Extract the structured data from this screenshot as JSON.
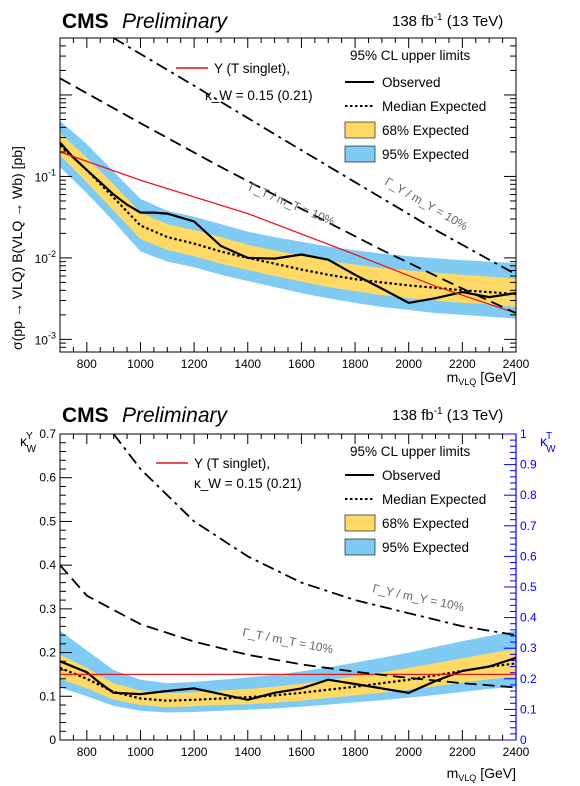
{
  "chart_data": [
    {
      "type": "line",
      "header": {
        "cms": "CMS",
        "preliminary": "Preliminary",
        "lumi_value": "138 fb",
        "lumi_exp": "-1",
        "lumi_energy": " (13 TeV)"
      },
      "xlabel": {
        "main": "m",
        "sub": "VLQ",
        "unit": " [GeV]"
      },
      "ylabel": "σ(pp → VLQ) B(VLQ → Wb) [pb]",
      "x_ticks": [
        "800",
        "1000",
        "1200",
        "1400",
        "1600",
        "1800",
        "2000",
        "2200",
        "2400"
      ],
      "y_ticks": [
        {
          "value": 0.1,
          "base": "10",
          "exp": "-1"
        },
        {
          "value": 0.01,
          "base": "10",
          "exp": "-2"
        },
        {
          "value": 0.001,
          "base": "10",
          "exp": "-3"
        }
      ],
      "xlim": [
        700,
        2400
      ],
      "ylim": [
        0.0007,
        5
      ],
      "yscale": "log",
      "legend": {
        "title": "95% CL upper limits",
        "observed": "Observed",
        "expected": "Median Expected",
        "band68": "68% Expected",
        "band95": "95% Expected",
        "theory": "Y (T singlet),",
        "theory2": "κ_W = 0.15 (0.21)",
        "placement": "top-right"
      },
      "width_labels": [
        "Γ_Y / m_Y = 10%",
        "Γ_T / m_T = 10%"
      ],
      "colors": {
        "band68": "#fed966",
        "band95": "#7fcbf4",
        "theory": "#e41a1c",
        "line": "#000000",
        "label": "#666666"
      },
      "series": [
        {
          "name": "Observed",
          "style": "solid",
          "x": [
            700,
            750,
            800,
            850,
            900,
            950,
            1000,
            1050,
            1100,
            1200,
            1300,
            1400,
            1500,
            1600,
            1700,
            1800,
            1900,
            2000,
            2100,
            2200,
            2300,
            2400
          ],
          "y": [
            0.26,
            0.17,
            0.12,
            0.085,
            0.06,
            0.045,
            0.036,
            0.036,
            0.035,
            0.028,
            0.014,
            0.01,
            0.0098,
            0.011,
            0.0095,
            0.0062,
            0.0042,
            0.0028,
            0.0032,
            0.0038,
            0.0033,
            0.0037
          ]
        },
        {
          "name": "Median Expected",
          "style": "dotted",
          "x": [
            700,
            800,
            900,
            1000,
            1100,
            1200,
            1300,
            1400,
            1500,
            1600,
            1700,
            1800,
            1900,
            2000,
            2100,
            2200,
            2300,
            2400
          ],
          "y": [
            0.24,
            0.12,
            0.055,
            0.025,
            0.018,
            0.015,
            0.012,
            0.01,
            0.0085,
            0.0072,
            0.0062,
            0.0055,
            0.005,
            0.0046,
            0.0043,
            0.004,
            0.0038,
            0.0036
          ]
        },
        {
          "name": "68% Expected",
          "style": "band",
          "x": [
            700,
            800,
            900,
            1000,
            1100,
            1200,
            1300,
            1400,
            1500,
            1600,
            1700,
            1800,
            1900,
            2000,
            2100,
            2200,
            2300,
            2400
          ],
          "lo": [
            0.18,
            0.085,
            0.038,
            0.017,
            0.0125,
            0.0105,
            0.0085,
            0.0071,
            0.006,
            0.0051,
            0.0044,
            0.0039,
            0.0035,
            0.0032,
            0.003,
            0.0028,
            0.0027,
            0.0025
          ],
          "hi": [
            0.34,
            0.17,
            0.08,
            0.036,
            0.026,
            0.022,
            0.018,
            0.0145,
            0.0124,
            0.0106,
            0.0092,
            0.0083,
            0.0075,
            0.007,
            0.0066,
            0.0062,
            0.0059,
            0.0056
          ]
        },
        {
          "name": "95% Expected",
          "style": "band",
          "x": [
            700,
            800,
            900,
            1000,
            1100,
            1200,
            1300,
            1400,
            1500,
            1600,
            1700,
            1800,
            1900,
            2000,
            2100,
            2200,
            2300,
            2400
          ],
          "lo": [
            0.13,
            0.062,
            0.028,
            0.012,
            0.009,
            0.0077,
            0.0062,
            0.0052,
            0.0044,
            0.0037,
            0.0032,
            0.0028,
            0.0025,
            0.0023,
            0.0021,
            0.002,
            0.0019,
            0.0018
          ],
          "hi": [
            0.48,
            0.25,
            0.115,
            0.053,
            0.038,
            0.032,
            0.026,
            0.021,
            0.018,
            0.0158,
            0.0138,
            0.0124,
            0.0113,
            0.0105,
            0.0099,
            0.0094,
            0.009,
            0.0086
          ]
        },
        {
          "name": "Y (T singlet), κ_W = 0.15 (0.21)",
          "style": "theory",
          "x": [
            700,
            1000,
            1400,
            1800,
            2100,
            2400
          ],
          "y": [
            0.2,
            0.09,
            0.035,
            0.011,
            0.0045,
            0.0021
          ]
        },
        {
          "name": "Γ_Y / m_Y = 10%",
          "style": "dashdot",
          "x": [
            900,
            1200,
            1500,
            1800,
            2100,
            2300,
            2400
          ],
          "y": [
            5.0,
            1.3,
            0.33,
            0.085,
            0.022,
            0.0095,
            0.0063
          ]
        },
        {
          "name": "Γ_T / m_T = 10%",
          "style": "dashed",
          "x": [
            700,
            1000,
            1300,
            1600,
            1900,
            2200,
            2400
          ],
          "y": [
            1.6,
            0.45,
            0.13,
            0.04,
            0.0125,
            0.0042,
            0.0021
          ]
        }
      ]
    },
    {
      "type": "line",
      "header": {
        "cms": "CMS",
        "preliminary": "Preliminary",
        "lumi_value": "138 fb",
        "lumi_exp": "-1",
        "lumi_energy": " (13 TeV)"
      },
      "xlabel": {
        "main": "m",
        "sub": "VLQ",
        "unit": " [GeV]"
      },
      "ylabel": {
        "main": "κ",
        "sub": "W",
        "sup": "Y"
      },
      "ylabel_right": {
        "main": "κ",
        "sub": "W",
        "sup": "T"
      },
      "x_ticks": [
        "800",
        "1000",
        "1200",
        "1400",
        "1600",
        "1800",
        "2000",
        "2200",
        "2400"
      ],
      "y_ticks": [
        "0",
        "0.1",
        "0.2",
        "0.3",
        "0.4",
        "0.5",
        "0.6",
        "0.7"
      ],
      "y_right_ticks": [
        "0",
        "0.1",
        "0.2",
        "0.3",
        "0.4",
        "0.5",
        "0.6",
        "0.7",
        "0.8",
        "0.9",
        "1"
      ],
      "xlim": [
        700,
        2400
      ],
      "ylim": [
        0,
        0.7
      ],
      "ylim_right": [
        0,
        1
      ],
      "legend": {
        "title": "95% CL upper limits",
        "observed": "Observed",
        "expected": "Median Expected",
        "band68": "68% Expected",
        "band95": "95% Expected",
        "theory": "Y (T singlet),",
        "theory2": "κ_W = 0.15 (0.21)",
        "placement": "top-right"
      },
      "width_labels": [
        "Γ_Y / m_Y = 10%",
        "Γ_T / m_T = 10%"
      ],
      "colors": {
        "band68": "#fed966",
        "band95": "#7fcbf4",
        "theory": "#e41a1c",
        "line": "#000000",
        "label": "#666666",
        "right_axis": "#0000ff"
      },
      "series": [
        {
          "name": "Observed",
          "style": "solid",
          "x": [
            700,
            800,
            850,
            900,
            1000,
            1100,
            1200,
            1300,
            1400,
            1500,
            1600,
            1700,
            1800,
            1900,
            2000,
            2100,
            2200,
            2300,
            2400
          ],
          "y": [
            0.18,
            0.155,
            0.13,
            0.108,
            0.105,
            0.112,
            0.118,
            0.105,
            0.092,
            0.108,
            0.118,
            0.138,
            0.128,
            0.118,
            0.108,
            0.135,
            0.158,
            0.168,
            0.188
          ]
        },
        {
          "name": "Median Expected",
          "style": "dotted",
          "x": [
            700,
            800,
            900,
            1000,
            1100,
            1200,
            1300,
            1400,
            1500,
            1600,
            1700,
            1800,
            1900,
            2000,
            2100,
            2200,
            2300,
            2400
          ],
          "y": [
            0.165,
            0.14,
            0.11,
            0.095,
            0.09,
            0.092,
            0.095,
            0.098,
            0.102,
            0.108,
            0.115,
            0.122,
            0.13,
            0.138,
            0.148,
            0.158,
            0.168,
            0.175
          ]
        },
        {
          "name": "68% Expected",
          "style": "band",
          "x": [
            700,
            800,
            900,
            1000,
            1100,
            1200,
            1300,
            1400,
            1500,
            1600,
            1700,
            1800,
            1900,
            2000,
            2100,
            2200,
            2300,
            2400
          ],
          "lo": [
            0.14,
            0.118,
            0.092,
            0.08,
            0.075,
            0.077,
            0.08,
            0.082,
            0.085,
            0.09,
            0.096,
            0.102,
            0.108,
            0.115,
            0.123,
            0.131,
            0.139,
            0.145
          ],
          "hi": [
            0.195,
            0.165,
            0.13,
            0.113,
            0.107,
            0.109,
            0.113,
            0.117,
            0.122,
            0.129,
            0.137,
            0.146,
            0.155,
            0.165,
            0.176,
            0.187,
            0.198,
            0.208
          ]
        },
        {
          "name": "95% Expected",
          "style": "band",
          "x": [
            700,
            800,
            900,
            1000,
            1100,
            1200,
            1300,
            1400,
            1500,
            1600,
            1700,
            1800,
            1900,
            2000,
            2100,
            2200,
            2300,
            2400
          ],
          "lo": [
            0.12,
            0.1,
            0.078,
            0.067,
            0.063,
            0.064,
            0.067,
            0.069,
            0.072,
            0.076,
            0.081,
            0.086,
            0.091,
            0.097,
            0.103,
            0.11,
            0.117,
            0.122
          ],
          "hi": [
            0.25,
            0.205,
            0.16,
            0.138,
            0.13,
            0.133,
            0.138,
            0.143,
            0.149,
            0.157,
            0.166,
            0.177,
            0.188,
            0.2,
            0.213,
            0.226,
            0.238,
            0.25
          ]
        },
        {
          "name": "Y (T singlet), κ_W = 0.15 (0.21)",
          "style": "theory",
          "x": [
            700,
            2400
          ],
          "y": [
            0.15,
            0.15
          ]
        },
        {
          "name": "Γ_Y / m_Y = 10%",
          "style": "dashdot",
          "x": [
            900,
            1000,
            1200,
            1400,
            1600,
            1800,
            2000,
            2200,
            2400
          ],
          "y": [
            0.7,
            0.62,
            0.5,
            0.42,
            0.36,
            0.32,
            0.29,
            0.26,
            0.24
          ]
        },
        {
          "name": "Γ_T / m_T = 10%",
          "style": "dashed",
          "x": [
            700,
            800,
            1000,
            1200,
            1400,
            1600,
            1800,
            2000,
            2200,
            2400
          ],
          "y": [
            0.4,
            0.33,
            0.265,
            0.225,
            0.195,
            0.173,
            0.156,
            0.142,
            0.13,
            0.12
          ]
        }
      ]
    }
  ]
}
